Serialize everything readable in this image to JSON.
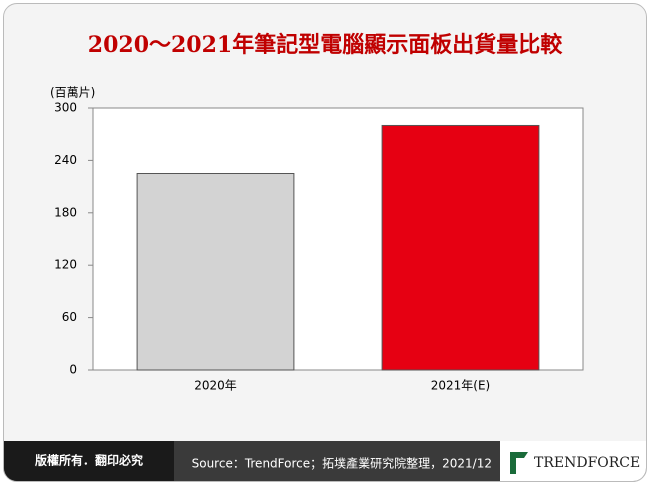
{
  "chart_data": {
    "type": "bar",
    "title": "2020～2021年筆記型電腦顯示面板出貨量比較",
    "y_label": "(百萬片)",
    "categories": [
      "2020年",
      "2021年(E)"
    ],
    "values": [
      225,
      280
    ],
    "colors": [
      "#d3d3d3",
      "#e60012"
    ],
    "ylim": [
      0,
      300
    ],
    "yticks": [
      0,
      60,
      120,
      180,
      240,
      300
    ]
  },
  "footer": {
    "rights": "版權所有．翻印必究",
    "source": "Source：TrendForce；拓墣產業研究院整理，2021/12",
    "logo": "TRENDFORCE"
  }
}
